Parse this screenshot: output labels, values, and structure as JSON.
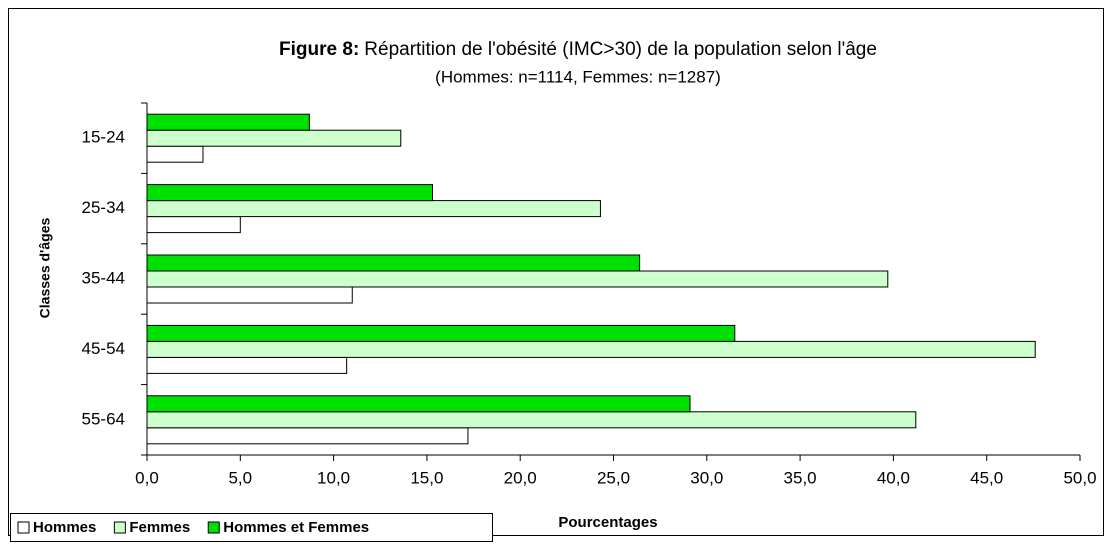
{
  "chart_data": {
    "type": "barh",
    "title_label": "Figure 8:",
    "title": "Répartition de l'obésité (IMC>30) de la population selon l'âge",
    "subtitle": "(Hommes: n=1114, Femmes: n=1287)",
    "ylabel": "Classes d'âges",
    "xlabel": "Pourcentages",
    "categories": [
      "15-24",
      "25-34",
      "35-44",
      "45-54",
      "55-64"
    ],
    "series": [
      {
        "name": "Hommes",
        "color": "#ffffff",
        "values": [
          3.0,
          5.0,
          11.0,
          10.7,
          17.2
        ]
      },
      {
        "name": "Femmes",
        "color": "#ccffcc",
        "values": [
          13.6,
          24.3,
          39.7,
          47.6,
          41.2
        ]
      },
      {
        "name": "Hommes et Femmes",
        "color": "#00e000",
        "values": [
          8.7,
          15.3,
          26.4,
          31.5,
          29.1
        ]
      }
    ],
    "xlim": [
      0,
      50
    ],
    "xticks": [
      {
        "value": 0,
        "label": "0,0"
      },
      {
        "value": 5,
        "label": "5,0"
      },
      {
        "value": 10,
        "label": "10,0"
      },
      {
        "value": 15,
        "label": "15,0"
      },
      {
        "value": 20,
        "label": "20,0"
      },
      {
        "value": 25,
        "label": "25,0"
      },
      {
        "value": 30,
        "label": "30,0"
      },
      {
        "value": 35,
        "label": "35,0"
      },
      {
        "value": 40,
        "label": "40,0"
      },
      {
        "value": 45,
        "label": "45,0"
      },
      {
        "value": 50,
        "label": "50,0"
      }
    ],
    "legend": "bottom-left"
  }
}
